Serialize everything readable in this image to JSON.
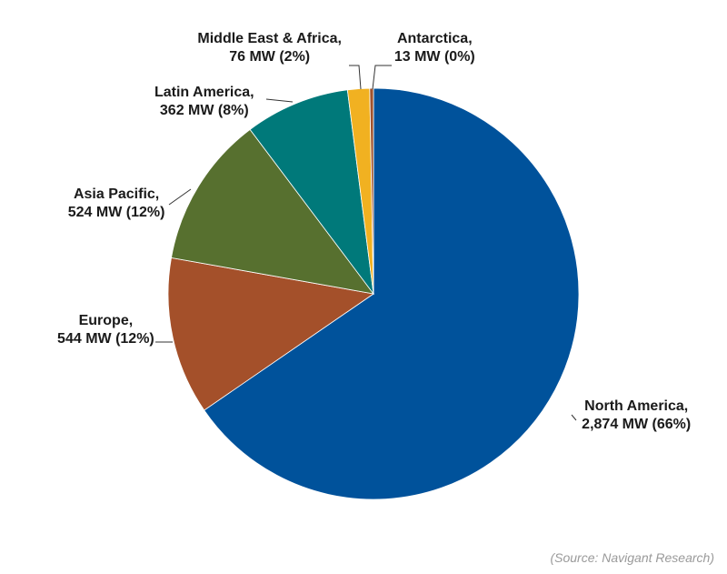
{
  "chart_data": {
    "type": "pie",
    "title": "",
    "unit": "MW",
    "slices": [
      {
        "name": "North America",
        "value": 2874,
        "value_label": "2,874 MW",
        "percent_label": "(66%)",
        "color": "#00529b"
      },
      {
        "name": "Europe",
        "value": 544,
        "value_label": "544 MW",
        "percent_label": "(12%)",
        "color": "#a4502a"
      },
      {
        "name": "Asia Pacific",
        "value": 524,
        "value_label": "524 MW",
        "percent_label": "(12%)",
        "color": "#57702f"
      },
      {
        "name": "Latin America",
        "value": 362,
        "value_label": "362 MW",
        "percent_label": "(8%)",
        "color": "#00797a"
      },
      {
        "name": "Middle East & Africa",
        "value": 76,
        "value_label": "76 MW",
        "percent_label": "(2%)",
        "color": "#f1b121"
      },
      {
        "name": "Antarctica",
        "value": 13,
        "value_label": "13 MW",
        "percent_label": "(0%)",
        "color": "#a0522d"
      }
    ],
    "start_angle": "top",
    "direction": "clockwise",
    "legend": "none"
  },
  "source": "(Source: Navigant Research)"
}
